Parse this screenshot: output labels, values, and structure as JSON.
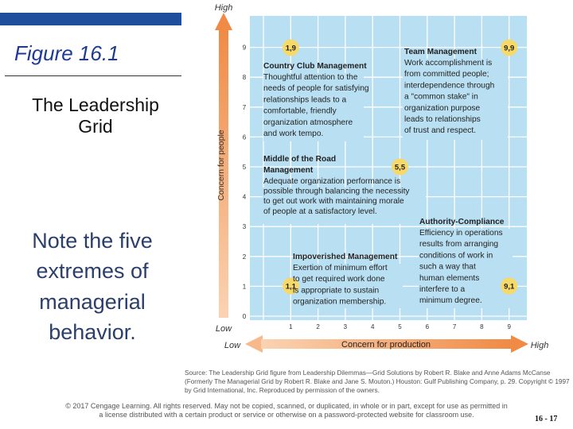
{
  "slide": {
    "figure_title": "Figure 16.1",
    "subtitle": "The Leadership Grid",
    "note": "Note the five extremes of managerial behavior.",
    "copyright": "© 2017 Cengage Learning. All rights reserved. May not be copied, scanned, or duplicated, in whole or in part, except for use as permitted in a license distributed with a certain product or service or otherwise on a password-protected website for classroom use.",
    "page_number": "16 - 17"
  },
  "grid": {
    "y_axis_label": "Concern for people",
    "x_axis_label": "Concern for production",
    "y_high": "High",
    "y_low": "Low",
    "x_low": "Low",
    "x_high": "High",
    "x_ticks": [
      "1",
      "2",
      "3",
      "4",
      "5",
      "6",
      "7",
      "8",
      "9"
    ],
    "y_ticks": [
      "0",
      "1",
      "2",
      "3",
      "4",
      "5",
      "6",
      "7",
      "8",
      "9"
    ],
    "styles": [
      {
        "id": "country-club",
        "badge": "1,9",
        "title": [
          "Country Club Management"
        ],
        "body": [
          "Thoughtful attention to the",
          "needs of people for satisfying",
          "relationships leads to a",
          "comfortable, friendly",
          "organization atmosphere",
          "and work tempo."
        ]
      },
      {
        "id": "team",
        "badge": "9,9",
        "title": [
          "Team Management"
        ],
        "body": [
          "Work accomplishment is",
          "from committed people;",
          "interdependence through",
          "a \"common stake\" in",
          "organization purpose",
          "leads to relationships",
          "of trust and respect."
        ]
      },
      {
        "id": "middle-road",
        "badge": "5,5",
        "title": [
          "Middle of the Road",
          "Management"
        ],
        "body": [
          "Adequate organization performance is",
          "possible through balancing the necessity",
          "to get out work with maintaining morale",
          "of people at a satisfactory level."
        ]
      },
      {
        "id": "authority",
        "badge": "9,1",
        "title": [
          "Authority-Compliance"
        ],
        "body": [
          "Efficiency in operations",
          "results from arranging",
          "conditions of work in",
          "such a way that",
          "human elements",
          "interfere to a",
          "minimum degree."
        ]
      },
      {
        "id": "impoverished",
        "badge": "1,1",
        "title": [
          "Impoverished Management"
        ],
        "body": [
          "Exertion of minimum effort",
          "to get required work done",
          "is appropriate to sustain",
          "organization membership."
        ]
      }
    ],
    "source": "Source: The Leadership Grid figure from Leadership Dilemmas—Grid Solutions by Robert R. Blake and Anne Adams McCanse (Formerly The Managerial Grid by Robert R. Blake and Jane S. Mouton.) Houston: Gulf Publishing Company, p. 29. Copyright © 1997 by Grid International, Inc. Reproduced by permission of the owners."
  },
  "colors": {
    "grid_background": "#b9dff2",
    "grid_lines": "#ffffff",
    "badge": "#f7d96a",
    "arrow": "#f08a45",
    "arrow_light": "#f7b98c",
    "text_dark": "#222222"
  }
}
